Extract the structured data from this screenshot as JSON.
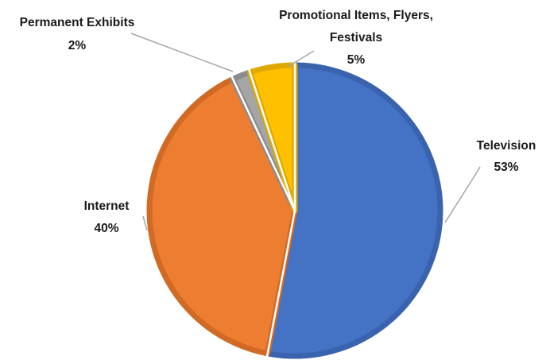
{
  "chart_data": {
    "type": "pie",
    "title": "",
    "slices": [
      {
        "name": "Television",
        "value": 53,
        "label": "53%",
        "color": "#4472C4",
        "edge": "#3A63AE"
      },
      {
        "name": "Internet",
        "value": 40,
        "label": "40%",
        "color": "#ED7D31",
        "edge": "#D06A25"
      },
      {
        "name": "Permanent Exhibits",
        "value": 2,
        "label": "2%",
        "color": "#A5A5A5",
        "edge": "#8C8C8C"
      },
      {
        "name": "Promotional Items, Flyers, Festivals",
        "name_lines": [
          "Promotional Items, Flyers,",
          "Festivals"
        ],
        "value": 5,
        "label": "5%",
        "color": "#FFC000",
        "edge": "#E0A800"
      }
    ],
    "start_angle_deg": 0,
    "direction": "clockwise",
    "legend": "none",
    "labels": "outside with leader lines"
  }
}
